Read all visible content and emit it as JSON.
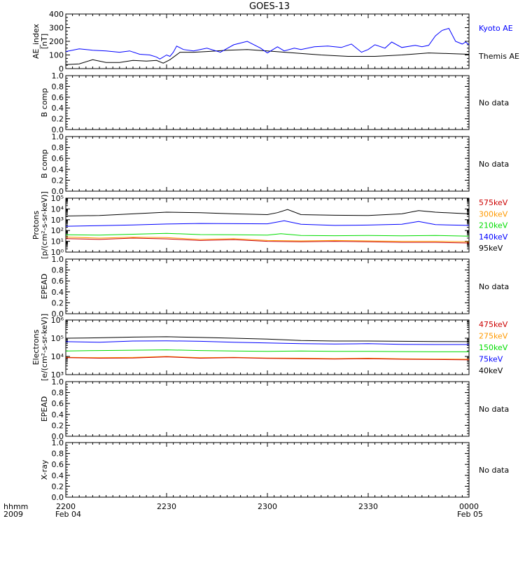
{
  "title": "GOES-13",
  "colors": {
    "black": "#000000",
    "blue": "#0000ff",
    "green": "#00dd00",
    "orange": "#ff9900",
    "darkred": "#cc0000",
    "red": "#ff2200"
  },
  "time_axis": {
    "label_line1": "hhmm",
    "label_line2": "2009",
    "ticks": [
      "2200",
      "2230",
      "2300",
      "2330",
      "0000"
    ],
    "date_left": "Feb 04",
    "date_right": "Feb 05"
  },
  "chart_data": [
    {
      "type": "line",
      "panel": "ae",
      "ylabel_line1": "AE_index",
      "ylabel_line2": "[nT]",
      "ylim": [
        0,
        400
      ],
      "y_ticks": [
        "0",
        "100",
        "200",
        "300",
        "400"
      ],
      "xlim": [
        "22:00",
        "00:00"
      ],
      "series": [
        {
          "name": "Kyoto AE",
          "color": "#0000ff",
          "x": [
            "22:00",
            "22:04",
            "22:08",
            "22:12",
            "22:16",
            "22:19",
            "22:22",
            "22:25",
            "22:27",
            "22:28",
            "22:30",
            "22:31",
            "22:32",
            "22:33",
            "22:35",
            "22:38",
            "22:42",
            "22:46",
            "22:50",
            "22:54",
            "22:58",
            "23:00",
            "23:03",
            "23:05",
            "23:08",
            "23:10",
            "23:14",
            "23:18",
            "23:22",
            "23:25",
            "23:28",
            "23:30",
            "23:32",
            "23:35",
            "23:37",
            "23:40",
            "23:44",
            "23:46",
            "23:48",
            "23:50",
            "23:52",
            "23:54",
            "23:56",
            "23:58",
            "23:59",
            "00:00"
          ],
          "y": [
            125,
            145,
            135,
            130,
            120,
            130,
            105,
            100,
            85,
            70,
            100,
            90,
            120,
            165,
            140,
            130,
            150,
            120,
            175,
            200,
            150,
            115,
            160,
            130,
            150,
            140,
            160,
            165,
            155,
            180,
            120,
            140,
            175,
            150,
            195,
            155,
            170,
            160,
            170,
            240,
            280,
            295,
            200,
            180,
            195,
            175
          ]
        },
        {
          "name": "Themis AE",
          "color": "#000000",
          "x": [
            "22:00",
            "22:04",
            "22:08",
            "22:12",
            "22:16",
            "22:20",
            "22:24",
            "22:27",
            "22:29",
            "22:31",
            "22:34",
            "22:38",
            "22:42",
            "22:48",
            "22:54",
            "23:00",
            "23:08",
            "23:16",
            "23:24",
            "23:32",
            "23:40",
            "23:48",
            "23:54",
            "00:00"
          ],
          "y": [
            30,
            35,
            65,
            45,
            45,
            60,
            55,
            60,
            40,
            65,
            120,
            120,
            125,
            135,
            140,
            130,
            115,
            100,
            90,
            90,
            100,
            115,
            110,
            105
          ]
        }
      ]
    },
    {
      "type": "line",
      "panel": "bcomp1",
      "ylabel": "B comp",
      "ylim": [
        0,
        1
      ],
      "y_ticks": [
        "0.0",
        "0.2",
        "0.4",
        "0.6",
        "0.8",
        "1.0"
      ],
      "note": "No data",
      "series": []
    },
    {
      "type": "line",
      "panel": "bcomp2",
      "ylabel": "B comp",
      "ylim": [
        0,
        1
      ],
      "y_ticks": [
        "0.0",
        "0.2",
        "0.4",
        "0.6",
        "0.8",
        "1.0"
      ],
      "note": "No data",
      "series": []
    },
    {
      "type": "line",
      "panel": "protons",
      "scale": "log",
      "ylabel_line1": "Protons",
      "ylabel_line2": "[p/(cm²-s-sr-keV)]",
      "ylim": [
        1,
        100000
      ],
      "y_ticks": [
        "10⁰",
        "10¹",
        "10²",
        "10³",
        "10⁴",
        "10⁵"
      ],
      "series": [
        {
          "name": "575keV",
          "color": "#cc0000",
          "x": [
            "22:00",
            "22:10",
            "22:20",
            "22:30",
            "22:40",
            "22:50",
            "23:00",
            "23:10",
            "23:20",
            "23:30",
            "23:40",
            "23:50",
            "00:00"
          ],
          "y": [
            18,
            15,
            20,
            17,
            12,
            14,
            10,
            9,
            10,
            9,
            8,
            8,
            7
          ]
        },
        {
          "name": "300keV",
          "color": "#ff9900",
          "x": [
            "22:00",
            "22:10",
            "22:20",
            "22:30",
            "22:40",
            "22:50",
            "23:00",
            "23:10",
            "23:20",
            "23:30",
            "23:40",
            "23:50",
            "00:00"
          ],
          "y": [
            25,
            20,
            24,
            22,
            15,
            18,
            12,
            11,
            12,
            11,
            10,
            10,
            9
          ]
        },
        {
          "name": "210keV",
          "color": "#00dd00",
          "x": [
            "22:00",
            "22:10",
            "22:20",
            "22:30",
            "22:40",
            "22:50",
            "23:00",
            "23:04",
            "23:10",
            "23:20",
            "23:30",
            "23:40",
            "23:50",
            "00:00"
          ],
          "y": [
            40,
            38,
            45,
            55,
            42,
            40,
            38,
            50,
            35,
            33,
            35,
            32,
            35,
            30
          ]
        },
        {
          "name": "140keV",
          "color": "#0000ff",
          "x": [
            "22:00",
            "22:10",
            "22:20",
            "22:30",
            "22:40",
            "22:50",
            "23:00",
            "23:05",
            "23:10",
            "23:20",
            "23:30",
            "23:40",
            "23:45",
            "23:50",
            "00:00"
          ],
          "y": [
            250,
            280,
            330,
            400,
            450,
            430,
            420,
            800,
            380,
            300,
            320,
            380,
            700,
            350,
            300
          ]
        },
        {
          "name": "95keV",
          "color": "#000000",
          "x": [
            "22:00",
            "22:10",
            "22:20",
            "22:30",
            "22:40",
            "22:50",
            "23:00",
            "23:03",
            "23:06",
            "23:10",
            "23:20",
            "23:30",
            "23:40",
            "23:45",
            "23:50",
            "00:00"
          ],
          "y": [
            2200,
            2500,
            3500,
            5000,
            4500,
            3500,
            3000,
            4500,
            9000,
            3000,
            2600,
            2500,
            3500,
            7000,
            5000,
            3500
          ]
        }
      ]
    },
    {
      "type": "line",
      "panel": "epead1",
      "ylabel": "EPEAD",
      "ylim": [
        0,
        1
      ],
      "y_ticks": [
        "0.0",
        "0.2",
        "0.4",
        "0.6",
        "0.8",
        "1.0"
      ],
      "note": "No data",
      "series": []
    },
    {
      "type": "line",
      "panel": "electrons",
      "scale": "log",
      "ylabel_line1": "Electrons",
      "ylabel_line2": "[e/(cm²-s-sr-keV)]",
      "ylim": [
        1000,
        1000000
      ],
      "y_ticks": [
        "10³",
        "10⁴",
        "10⁵",
        "10⁶"
      ],
      "series": [
        {
          "name": "475keV",
          "color": "#cc0000",
          "x": [
            "22:00",
            "22:10",
            "22:20",
            "22:30",
            "22:40",
            "22:50",
            "23:00",
            "23:10",
            "23:20",
            "23:30",
            "23:40",
            "23:50",
            "00:00"
          ],
          "y": [
            8500,
            8000,
            8200,
            9500,
            8000,
            8500,
            7800,
            7500,
            7200,
            7500,
            7000,
            6800,
            6500
          ]
        },
        {
          "name": "275keV",
          "color": "#ff9900",
          "x": [
            "22:00",
            "22:10",
            "22:20",
            "22:30",
            "22:40",
            "22:50",
            "23:00",
            "23:10",
            "23:20",
            "23:30",
            "23:40",
            "23:50",
            "00:00"
          ],
          "y": [
            9000,
            8500,
            8800,
            10000,
            8500,
            9000,
            8200,
            8000,
            7600,
            8000,
            7400,
            7200,
            7000
          ]
        },
        {
          "name": "150keV",
          "color": "#00dd00",
          "x": [
            "22:00",
            "22:10",
            "22:20",
            "22:30",
            "22:40",
            "22:50",
            "23:00",
            "23:10",
            "23:20",
            "23:30",
            "23:40",
            "23:50",
            "00:00"
          ],
          "y": [
            20000,
            21000,
            22000,
            23000,
            21000,
            20000,
            19000,
            20000,
            19000,
            19000,
            18500,
            18000,
            18000
          ]
        },
        {
          "name": "75keV",
          "color": "#0000ff",
          "x": [
            "22:00",
            "22:10",
            "22:20",
            "22:30",
            "22:40",
            "22:50",
            "23:00",
            "23:10",
            "23:20",
            "23:30",
            "23:40",
            "23:50",
            "00:00"
          ],
          "y": [
            65000,
            60000,
            70000,
            72000,
            68000,
            60000,
            55000,
            50000,
            48000,
            50000,
            46000,
            45000,
            45000
          ]
        },
        {
          "name": "40keV",
          "color": "#000000",
          "x": [
            "22:00",
            "22:10",
            "22:20",
            "22:30",
            "22:40",
            "22:50",
            "23:00",
            "23:10",
            "23:20",
            "23:30",
            "23:40",
            "23:50",
            "00:00"
          ],
          "y": [
            100000,
            105000,
            115000,
            120000,
            110000,
            100000,
            90000,
            75000,
            70000,
            70000,
            68000,
            66000,
            65000
          ]
        }
      ]
    },
    {
      "type": "line",
      "panel": "epead2",
      "ylabel": "EPEAD",
      "ylim": [
        0,
        1
      ],
      "y_ticks": [
        "0.0",
        "0.2",
        "0.4",
        "0.6",
        "0.8",
        "1.0"
      ],
      "note": "No data",
      "series": []
    },
    {
      "type": "line",
      "panel": "xray",
      "ylabel": "X-ray",
      "ylim": [
        0,
        1
      ],
      "y_ticks": [
        "0.0",
        "0.2",
        "0.4",
        "0.6",
        "0.8",
        "1.0"
      ],
      "note": "No data",
      "series": []
    }
  ]
}
